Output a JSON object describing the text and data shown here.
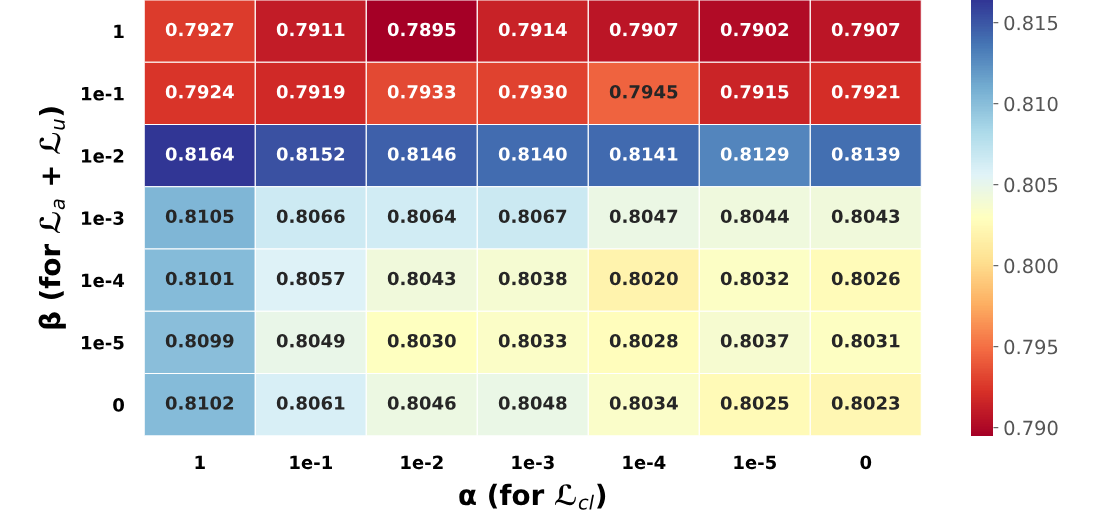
{
  "chart_data": {
    "type": "heatmap",
    "xlabel": "α (for ℒ$_{cl}$)",
    "ylabel": "β (for ℒ$_{a}$ + ℒ$_{u}$)",
    "categories": [
      "1",
      "1e-1",
      "1e-2",
      "1e-3",
      "1e-4",
      "1e-5",
      "0"
    ],
    "y_categories": [
      "1",
      "1e-1",
      "1e-2",
      "1e-3",
      "1e-4",
      "1e-5",
      "0"
    ],
    "cells": [
      [
        0.7927,
        0.7911,
        0.7895,
        0.7914,
        0.7907,
        0.7902,
        0.7907
      ],
      [
        0.7924,
        0.7919,
        0.7933,
        0.793,
        0.7945,
        0.7915,
        0.7921
      ],
      [
        0.8164,
        0.8152,
        0.8146,
        0.814,
        0.8141,
        0.8129,
        0.8139
      ],
      [
        0.8105,
        0.8066,
        0.8064,
        0.8067,
        0.8047,
        0.8044,
        0.8043
      ],
      [
        0.8101,
        0.8057,
        0.8043,
        0.8038,
        0.802,
        0.8032,
        0.8026
      ],
      [
        0.8099,
        0.8049,
        0.803,
        0.8033,
        0.8028,
        0.8037,
        0.8031
      ],
      [
        0.8102,
        0.8061,
        0.8046,
        0.8048,
        0.8034,
        0.8025,
        0.8023
      ]
    ],
    "cell_labels": [
      [
        "0.7927",
        "0.7911",
        "0.7895",
        "0.7914",
        "0.7907",
        "0.7902",
        "0.7907"
      ],
      [
        "0.7924",
        "0.7919",
        "0.7933",
        "0.7930",
        "0.7945",
        "0.7915",
        "0.7921"
      ],
      [
        "0.8164",
        "0.8152",
        "0.8146",
        "0.8140",
        "0.8141",
        "0.8129",
        "0.8139"
      ],
      [
        "0.8105",
        "0.8066",
        "0.8064",
        "0.8067",
        "0.8047",
        "0.8044",
        "0.8043"
      ],
      [
        "0.8101",
        "0.8057",
        "0.8043",
        "0.8038",
        "0.8020",
        "0.8032",
        "0.8026"
      ],
      [
        "0.8099",
        "0.8049",
        "0.8030",
        "0.8033",
        "0.8028",
        "0.8037",
        "0.8031"
      ],
      [
        "0.8102",
        "0.8061",
        "0.8046",
        "0.8048",
        "0.8034",
        "0.8025",
        "0.8023"
      ]
    ],
    "data_labels": true,
    "clim": [
      0.7895,
      0.8164
    ],
    "cticks": [
      {
        "value": 0.79,
        "label": "0.790"
      },
      0.795,
      {
        "value": 0.8,
        "label": "0.800"
      },
      0.805,
      {
        "value": 0.81,
        "label": "0.810"
      },
      0.815
    ],
    "grid": false
  }
}
